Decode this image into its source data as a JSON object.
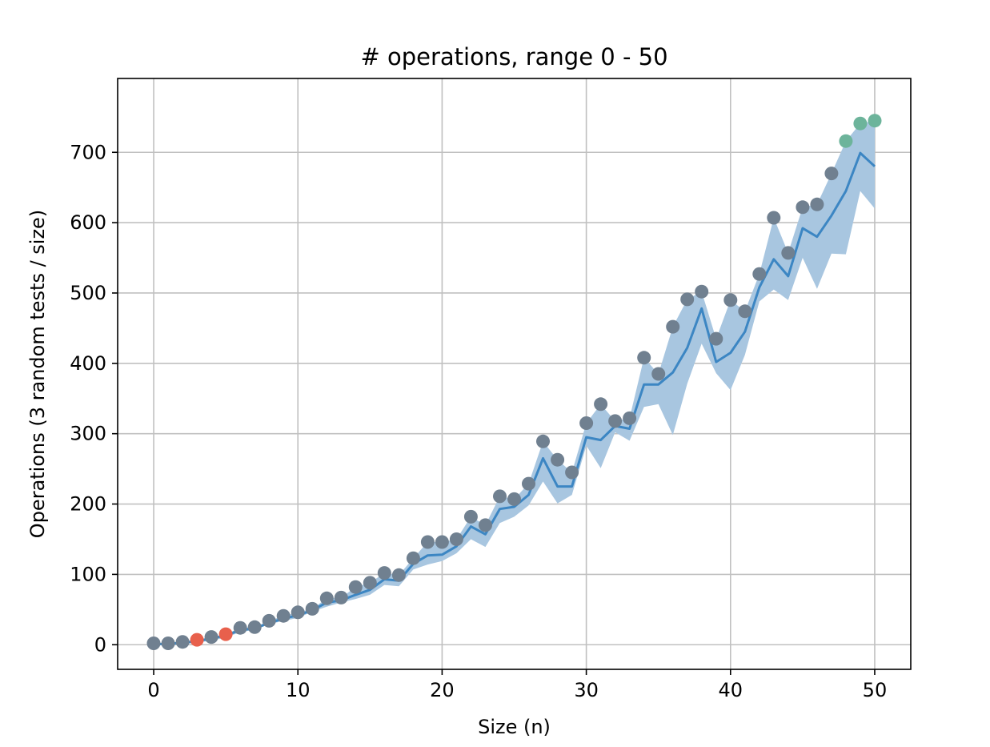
{
  "chart_data": {
    "type": "scatter",
    "title": "# operations, range 0 - 50",
    "xlabel": "Size (n)",
    "ylabel": "Operations (3 random tests / size)",
    "xlim": [
      -2.5,
      52.5
    ],
    "ylim": [
      -35,
      805
    ],
    "xticks": [
      0,
      10,
      20,
      30,
      40,
      50
    ],
    "yticks": [
      0,
      100,
      200,
      300,
      400,
      500,
      600,
      700
    ],
    "grid": true,
    "legend": "none",
    "colors": {
      "points": "#708090",
      "points_low": "#e8604c",
      "points_high": "#6db49b",
      "mean_line": "#3c86c3",
      "band": "#a8c6e0",
      "grid": "#c0c0c0"
    },
    "series": [
      {
        "kind": "band",
        "x": [
          0,
          1,
          2,
          3,
          4,
          5,
          6,
          7,
          8,
          9,
          10,
          11,
          12,
          13,
          14,
          15,
          16,
          17,
          18,
          19,
          20,
          21,
          22,
          23,
          24,
          25,
          26,
          27,
          28,
          29,
          30,
          31,
          32,
          33,
          34,
          35,
          36,
          37,
          38,
          39,
          40,
          41,
          42,
          43,
          44,
          45,
          46,
          47,
          48,
          49,
          50
        ],
        "lower": [
          0,
          0,
          1,
          3,
          6,
          10,
          18,
          21,
          29,
          34,
          38,
          47,
          54,
          60,
          65,
          71,
          85,
          83,
          107,
          114,
          119,
          130,
          150,
          139,
          173,
          182,
          198,
          232,
          201,
          213,
          283,
          251,
          302,
          290,
          338,
          342,
          298,
          371,
          428,
          386,
          362,
          412,
          488,
          505,
          490,
          550,
          506,
          556,
          555,
          645,
          620
        ],
        "upper": [
          2,
          2,
          4,
          7,
          11,
          15,
          24,
          25,
          34,
          41,
          46,
          51,
          66,
          67,
          82,
          88,
          102,
          99,
          123,
          146,
          146,
          150,
          182,
          170,
          211,
          207,
          229,
          289,
          263,
          245,
          315,
          342,
          318,
          322,
          408,
          385,
          452,
          491,
          502,
          435,
          490,
          474,
          527,
          607,
          557,
          622,
          626,
          670,
          716,
          741,
          745
        ]
      },
      {
        "kind": "mean",
        "x": [
          0,
          1,
          2,
          3,
          4,
          5,
          6,
          7,
          8,
          9,
          10,
          11,
          12,
          13,
          14,
          15,
          16,
          17,
          18,
          19,
          20,
          21,
          22,
          23,
          24,
          25,
          26,
          27,
          28,
          29,
          30,
          31,
          32,
          33,
          34,
          35,
          36,
          37,
          38,
          39,
          40,
          41,
          42,
          43,
          44,
          45,
          46,
          47,
          48,
          49,
          50
        ],
        "y": [
          1,
          1,
          3,
          5,
          9,
          13,
          21,
          23,
          31,
          37,
          42,
          49,
          60,
          63,
          71,
          78,
          93,
          91,
          115,
          127,
          128,
          140,
          168,
          157,
          193,
          196,
          213,
          265,
          225,
          225,
          295,
          291,
          311,
          307,
          370,
          370,
          387,
          422,
          478,
          402,
          415,
          445,
          508,
          548,
          524,
          592,
          580,
          610,
          645,
          699,
          680
        ]
      },
      {
        "kind": "points",
        "x": [
          0,
          1,
          2,
          3,
          4,
          5,
          6,
          7,
          8,
          9,
          10,
          11,
          12,
          13,
          14,
          15,
          16,
          17,
          18,
          19,
          20,
          21,
          22,
          23,
          24,
          25,
          26,
          27,
          28,
          29,
          30,
          31,
          32,
          33,
          34,
          35,
          36,
          37,
          38,
          39,
          40,
          41,
          42,
          43,
          44,
          45,
          46,
          47,
          48,
          49,
          50
        ],
        "y": [
          2,
          2,
          4,
          7,
          11,
          15,
          24,
          25,
          34,
          41,
          46,
          51,
          66,
          67,
          82,
          88,
          102,
          99,
          123,
          146,
          146,
          150,
          182,
          170,
          211,
          207,
          229,
          289,
          263,
          245,
          315,
          342,
          318,
          322,
          408,
          385,
          452,
          491,
          502,
          435,
          490,
          474,
          527,
          607,
          557,
          622,
          626,
          670,
          716,
          741,
          745
        ],
        "highlight_low": [
          3,
          5
        ],
        "highlight_high": [
          48,
          49,
          50
        ]
      }
    ]
  }
}
